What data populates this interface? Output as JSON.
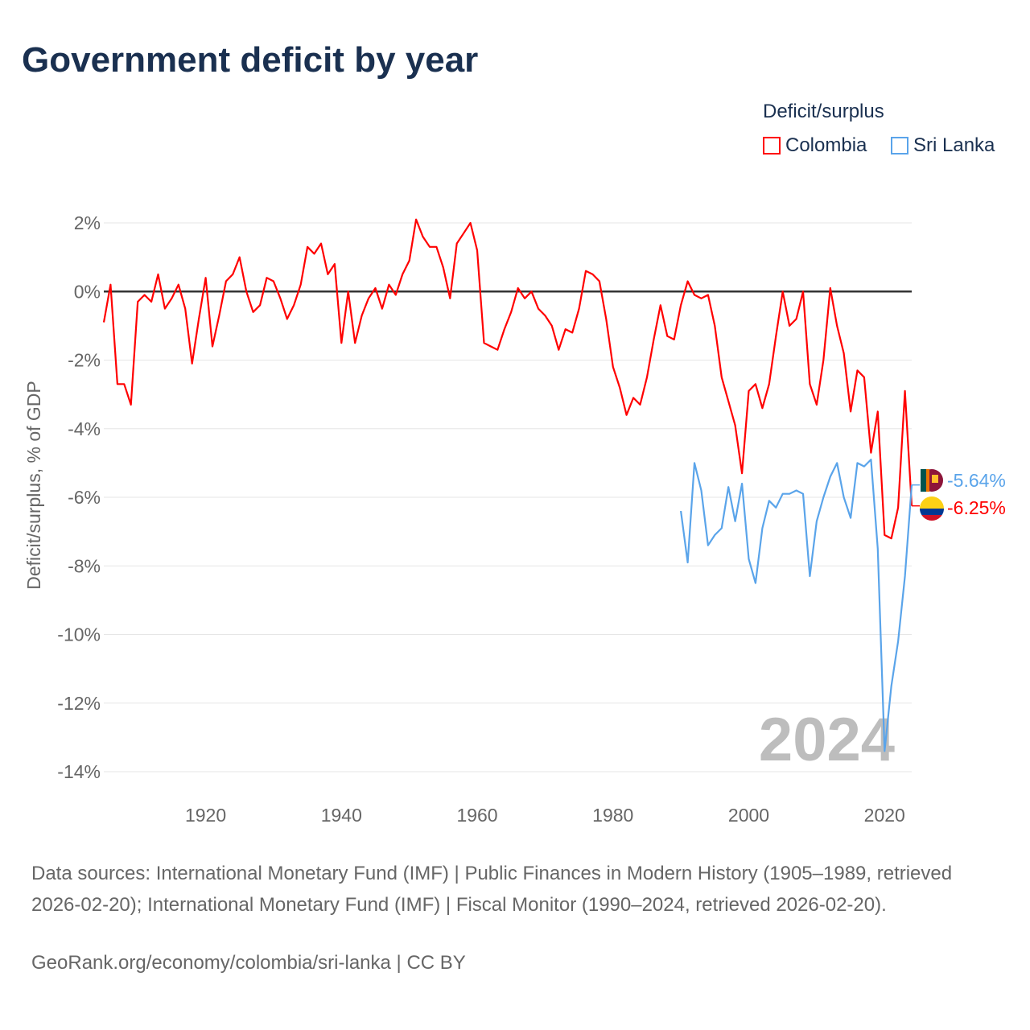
{
  "title": "Government deficit by year",
  "legend": {
    "title": "Deficit/surplus",
    "items": [
      {
        "label": "Colombia",
        "color": "#ff0000"
      },
      {
        "label": "Sri Lanka",
        "color": "#5aa4ea"
      }
    ]
  },
  "end_labels": {
    "sri_lanka": "-5.64%",
    "colombia": "-6.25%"
  },
  "year_watermark": "2024",
  "footer": {
    "source": "Data sources: International Monetary Fund (IMF) | Public Finances in Modern History (1905–1989, retrieved 2026-02-20); International Monetary Fund (IMF) | Fiscal Monitor (1990–2024, retrieved 2026-02-20).",
    "credit": "GeoRank.org/economy/colombia/sri-lanka | CC BY"
  },
  "chart_data": {
    "type": "line",
    "title": "Government deficit by year",
    "xlabel": "",
    "ylabel": "Deficit/surplus, % of GDP",
    "xlim": [
      1905,
      2024
    ],
    "ylim": [
      -14,
      2
    ],
    "xticks": [
      1920,
      1940,
      1960,
      1980,
      2000,
      2020
    ],
    "yticks": [
      2,
      0,
      -2,
      -4,
      -6,
      -8,
      -10,
      -12,
      -14
    ],
    "ytick_labels": [
      "2%",
      "0%",
      "-2%",
      "-4%",
      "-6%",
      "-8%",
      "-10%",
      "-12%",
      "-14%"
    ],
    "grid": true,
    "legend_position": "top-right",
    "series": [
      {
        "name": "Colombia",
        "color": "#ff0000",
        "start_year": 1905,
        "values": [
          -0.9,
          0.2,
          -2.7,
          -2.7,
          -3.3,
          -0.3,
          -0.1,
          -0.3,
          0.5,
          -0.5,
          -0.2,
          0.2,
          -0.5,
          -2.1,
          -0.8,
          0.4,
          -1.6,
          -0.7,
          0.3,
          0.5,
          1.0,
          0.0,
          -0.6,
          -0.4,
          0.4,
          0.3,
          -0.2,
          -0.8,
          -0.4,
          0.2,
          1.3,
          1.1,
          1.4,
          0.5,
          0.8,
          -1.5,
          0.0,
          -1.5,
          -0.7,
          -0.2,
          0.1,
          -0.5,
          0.2,
          -0.1,
          0.5,
          0.9,
          2.1,
          1.6,
          1.3,
          1.3,
          0.7,
          -0.2,
          1.4,
          1.7,
          2.0,
          1.2,
          -1.5,
          -1.6,
          -1.7,
          -1.1,
          -0.6,
          0.1,
          -0.2,
          0.0,
          -0.5,
          -0.7,
          -1.0,
          -1.7,
          -1.1,
          -1.2,
          -0.5,
          0.6,
          0.5,
          0.3,
          -0.8,
          -2.2,
          -2.8,
          -3.6,
          -3.1,
          -3.3,
          -2.5,
          -1.4,
          -0.4,
          -1.3,
          -1.4,
          -0.4,
          0.3,
          -0.1,
          -0.2,
          -0.1,
          -1.0,
          -2.5,
          -3.2,
          -3.9,
          -5.3,
          -2.9,
          -2.7,
          -3.4,
          -2.7,
          -1.3,
          0.0,
          -1.0,
          -0.8,
          0.0,
          -2.7,
          -3.3,
          -2.0,
          0.1,
          -1.0,
          -1.8,
          -3.5,
          -2.3,
          -2.5,
          -4.7,
          -3.5,
          -7.1,
          -7.2,
          -6.3,
          -2.9,
          -6.25
        ]
      },
      {
        "name": "Sri Lanka",
        "color": "#5aa4ea",
        "start_year": 1990,
        "values": [
          -6.4,
          -7.9,
          -5.0,
          -5.8,
          -7.4,
          -7.1,
          -6.9,
          -5.7,
          -6.7,
          -5.6,
          -7.8,
          -8.5,
          -6.9,
          -6.1,
          -6.3,
          -5.9,
          -5.9,
          -5.8,
          -5.9,
          -8.3,
          -6.7,
          -6.0,
          -5.4,
          -5.0,
          -6.0,
          -6.6,
          -5.0,
          -5.1,
          -4.9,
          -7.5,
          -13.4,
          -11.5,
          -10.2,
          -8.3,
          -5.64
        ]
      }
    ]
  }
}
